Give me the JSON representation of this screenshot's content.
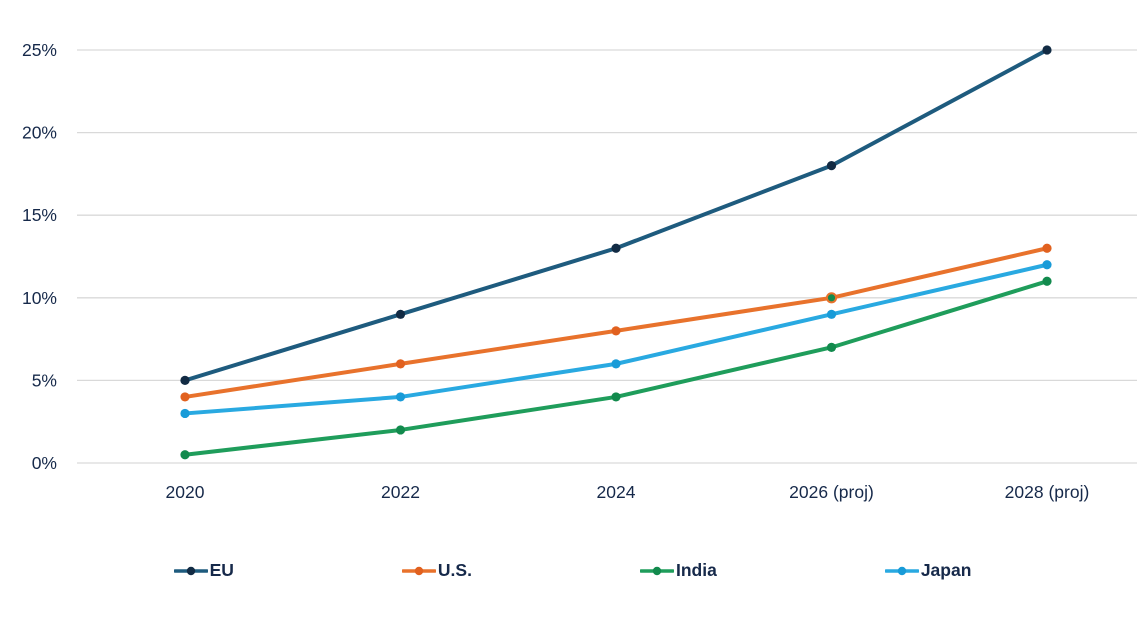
{
  "chart_data": {
    "type": "line",
    "title": "",
    "xlabel": "",
    "ylabel": "",
    "categories": [
      "2020",
      "2022",
      "2024",
      "2026 (proj)",
      "2028 (proj)"
    ],
    "series": [
      {
        "name": "EU",
        "values": [
          5,
          9,
          13,
          18,
          25
        ],
        "color": "#1E5B7E",
        "marker_color": "#122B44"
      },
      {
        "name": "U.S.",
        "values": [
          4,
          6,
          8,
          10,
          13
        ],
        "color": "#E8722C",
        "marker_color": "#E1611F",
        "marker_fill_overrides": {
          "3": "#128A4D"
        }
      },
      {
        "name": "India",
        "values": [
          0.5,
          2,
          4,
          7,
          11
        ],
        "color": "#1F9D5B",
        "marker_color": "#128A4D"
      },
      {
        "name": "Japan",
        "values": [
          3,
          4,
          6,
          9,
          12
        ],
        "color": "#29A9E1",
        "marker_color": "#189BD8"
      }
    ],
    "ylim": [
      0,
      25
    ],
    "y_ticks": [
      "0%",
      "5%",
      "10%",
      "15%",
      "20%",
      "25%"
    ],
    "y_tick_values": [
      0,
      5,
      10,
      15,
      20,
      25
    ],
    "grid": true,
    "legend_position": "bottom",
    "colors": {
      "text": "#16294A",
      "gridline": "#D9D9D9",
      "background": "#FFFFFF"
    }
  }
}
